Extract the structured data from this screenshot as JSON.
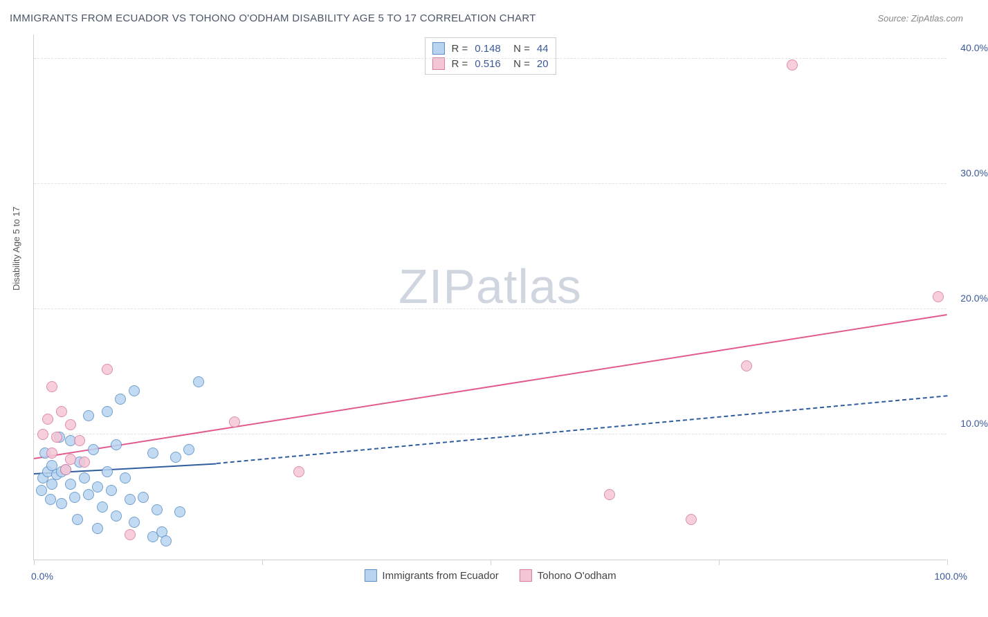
{
  "title": "IMMIGRANTS FROM ECUADOR VS TOHONO O'ODHAM DISABILITY AGE 5 TO 17 CORRELATION CHART",
  "source": "Source: ZipAtlas.com",
  "watermark_a": "ZIP",
  "watermark_b": "atlas",
  "y_axis_label": "Disability Age 5 to 17",
  "chart": {
    "type": "scatter",
    "background_color": "#ffffff",
    "grid_color": "#e0e0e0",
    "axis_color": "#d0d0d0",
    "xlim": [
      0,
      100
    ],
    "ylim": [
      0,
      42
    ],
    "x_min_label": "0.0%",
    "x_max_label": "100.0%",
    "y_ticks": [
      10,
      20,
      30,
      40
    ],
    "y_tick_labels": [
      "10.0%",
      "20.0%",
      "30.0%",
      "40.0%"
    ],
    "x_tick_positions": [
      0,
      25,
      50,
      75,
      100
    ],
    "point_radius": 8,
    "series": [
      {
        "name": "Immigrants from Ecuador",
        "fill": "#b8d4f0",
        "stroke": "#5a8fc7",
        "r": "0.148",
        "n": "44",
        "trend_color": "#2e5c9e",
        "trend_solid": {
          "x1": 0,
          "y1": 6.8,
          "x2": 20,
          "y2": 7.6
        },
        "trend_dash": {
          "x1": 20,
          "y1": 7.6,
          "x2": 100,
          "y2": 13.0
        },
        "points": [
          {
            "x": 1.0,
            "y": 6.5
          },
          {
            "x": 1.5,
            "y": 7.0
          },
          {
            "x": 2.0,
            "y": 6.0
          },
          {
            "x": 2.0,
            "y": 7.5
          },
          {
            "x": 2.5,
            "y": 6.8
          },
          {
            "x": 1.2,
            "y": 8.5
          },
          {
            "x": 3.0,
            "y": 7.0
          },
          {
            "x": 0.8,
            "y": 5.5
          },
          {
            "x": 3.5,
            "y": 7.2
          },
          {
            "x": 4.0,
            "y": 6.0
          },
          {
            "x": 4.5,
            "y": 5.0
          },
          {
            "x": 5.0,
            "y": 7.8
          },
          {
            "x": 3.0,
            "y": 4.5
          },
          {
            "x": 5.5,
            "y": 6.5
          },
          {
            "x": 6.0,
            "y": 5.2
          },
          {
            "x": 6.5,
            "y": 8.8
          },
          {
            "x": 4.0,
            "y": 9.5
          },
          {
            "x": 7.0,
            "y": 5.8
          },
          {
            "x": 7.5,
            "y": 4.2
          },
          {
            "x": 6.0,
            "y": 11.5
          },
          {
            "x": 8.0,
            "y": 7.0
          },
          {
            "x": 8.5,
            "y": 5.5
          },
          {
            "x": 9.0,
            "y": 3.5
          },
          {
            "x": 8.0,
            "y": 11.8
          },
          {
            "x": 10.0,
            "y": 6.5
          },
          {
            "x": 10.5,
            "y": 4.8
          },
          {
            "x": 11.0,
            "y": 3.0
          },
          {
            "x": 9.5,
            "y": 12.8
          },
          {
            "x": 12.0,
            "y": 5.0
          },
          {
            "x": 7.0,
            "y": 2.5
          },
          {
            "x": 13.0,
            "y": 8.5
          },
          {
            "x": 13.5,
            "y": 4.0
          },
          {
            "x": 14.0,
            "y": 2.2
          },
          {
            "x": 11.0,
            "y": 13.5
          },
          {
            "x": 15.5,
            "y": 8.2
          },
          {
            "x": 16.0,
            "y": 3.8
          },
          {
            "x": 17.0,
            "y": 8.8
          },
          {
            "x": 14.5,
            "y": 1.5
          },
          {
            "x": 18.0,
            "y": 14.2
          },
          {
            "x": 13.0,
            "y": 1.8
          },
          {
            "x": 9.0,
            "y": 9.2
          },
          {
            "x": 2.8,
            "y": 9.8
          },
          {
            "x": 1.8,
            "y": 4.8
          },
          {
            "x": 4.8,
            "y": 3.2
          }
        ]
      },
      {
        "name": "Tohono O'odham",
        "fill": "#f5c6d6",
        "stroke": "#d87ba0",
        "r": "0.516",
        "n": "20",
        "trend_color": "#e15a8e",
        "trend_solid": {
          "x1": 0,
          "y1": 8.0,
          "x2": 100,
          "y2": 19.5
        },
        "trend_dash": null,
        "points": [
          {
            "x": 1.0,
            "y": 10.0
          },
          {
            "x": 1.5,
            "y": 11.2
          },
          {
            "x": 2.0,
            "y": 8.5
          },
          {
            "x": 2.5,
            "y": 9.8
          },
          {
            "x": 3.0,
            "y": 11.8
          },
          {
            "x": 2.0,
            "y": 13.8
          },
          {
            "x": 4.0,
            "y": 8.0
          },
          {
            "x": 3.5,
            "y": 7.2
          },
          {
            "x": 5.0,
            "y": 9.5
          },
          {
            "x": 5.5,
            "y": 7.8
          },
          {
            "x": 4.0,
            "y": 10.8
          },
          {
            "x": 8.0,
            "y": 15.2
          },
          {
            "x": 10.5,
            "y": 2.0
          },
          {
            "x": 22.0,
            "y": 11.0
          },
          {
            "x": 29.0,
            "y": 7.0
          },
          {
            "x": 63.0,
            "y": 5.2
          },
          {
            "x": 72.0,
            "y": 3.2
          },
          {
            "x": 78.0,
            "y": 15.5
          },
          {
            "x": 83.0,
            "y": 39.5
          },
          {
            "x": 99.0,
            "y": 21.0
          }
        ]
      }
    ]
  },
  "tick_label_color": "#3b5998",
  "label_fontsize": 14,
  "title_fontsize": 15
}
